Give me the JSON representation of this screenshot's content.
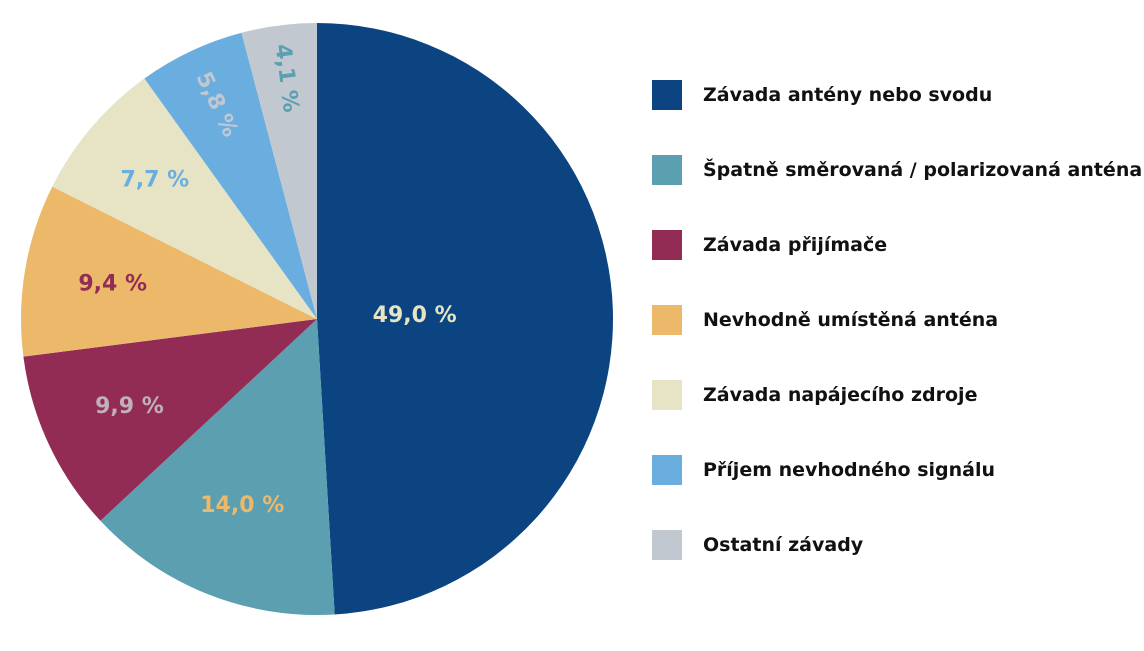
{
  "chart_data": {
    "type": "pie",
    "start": "top",
    "direction": "clockwise",
    "slices": [
      {
        "name": "Závada antény nebo svodu",
        "value": 49.0,
        "label": "49,0 %",
        "color": "#0b4480",
        "label_color": "#e6e4c4"
      },
      {
        "name": "Špatně směrovaná / polarizovaná anténa",
        "value": 14.0,
        "label": "14,0 %",
        "color": "#5b9fb0",
        "label_color": "#ecb96b"
      },
      {
        "name": "Závada přijímače",
        "value": 9.9,
        "label": "9,9 %",
        "color": "#922c55",
        "label_color": "#c2b0b8"
      },
      {
        "name": "Nevhodně umístěná anténa",
        "value": 9.4,
        "label": "9,4 %",
        "color": "#ecb96b",
        "label_color": "#922c55"
      },
      {
        "name": "Závada napájecího zdroje",
        "value": 7.7,
        "label": "7,7 %",
        "color": "#e6e4c4",
        "label_color": "#6aaee0"
      },
      {
        "name": "Příjem nevhodného signálu",
        "value": 5.8,
        "label": "5,8 %",
        "color": "#6aaee0",
        "label_color": "#c2c8d0"
      },
      {
        "name": "Ostatní závady",
        "value": 4.1,
        "label": "4,1 %",
        "color": "#c2c8d0",
        "label_color": "#5b9fb0"
      }
    ],
    "legend": "right"
  }
}
